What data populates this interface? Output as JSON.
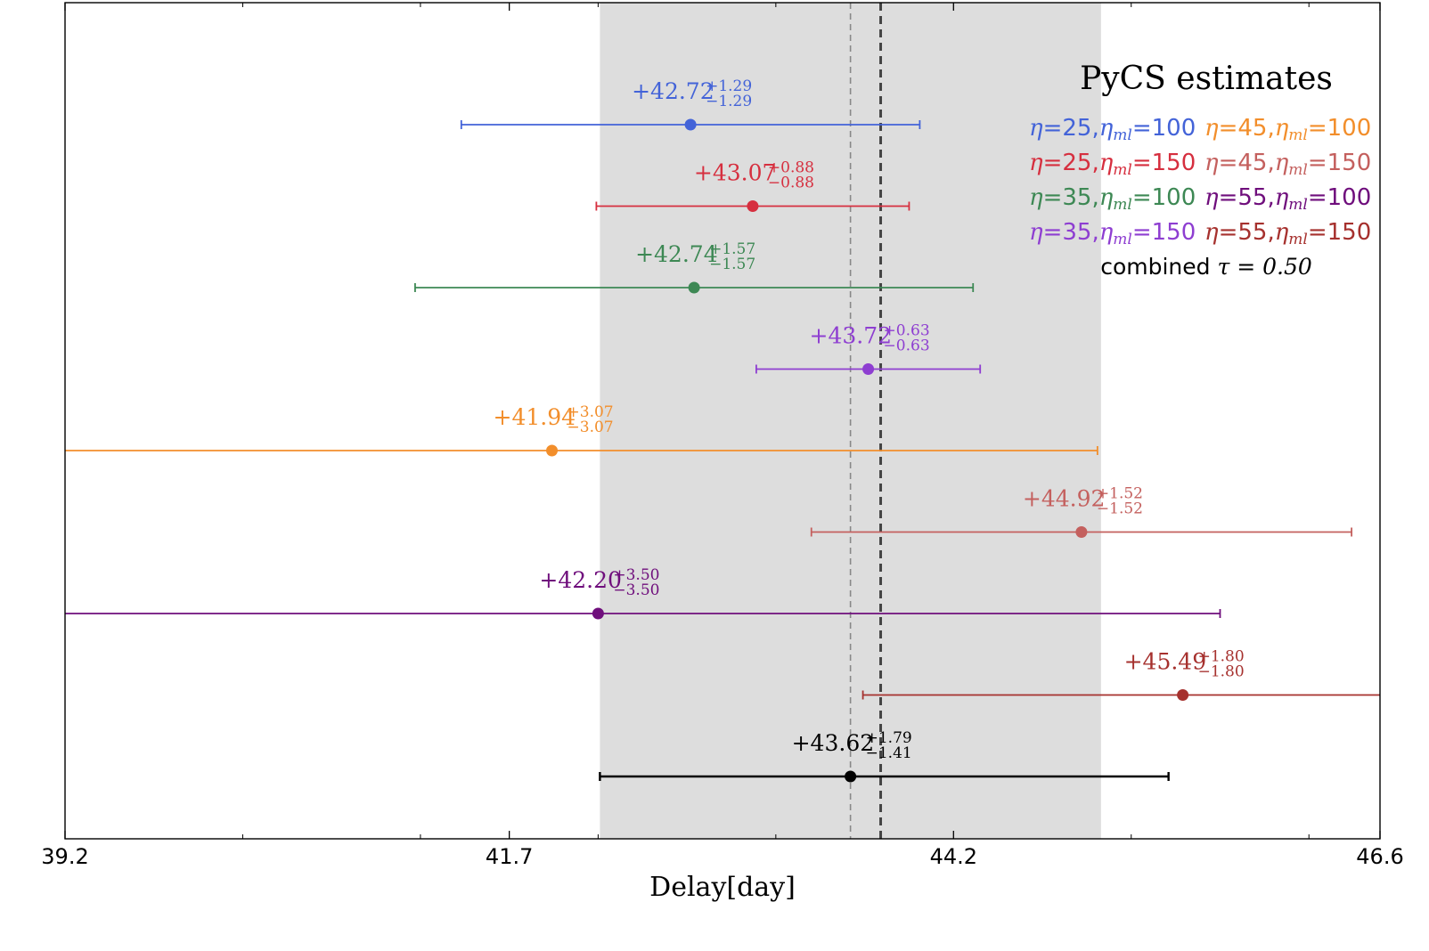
{
  "chart_data": {
    "type": "scatter",
    "title": "PyCS estimates",
    "xlabel": "Delay[day]",
    "ylabel": "",
    "xlim": [
      39.2,
      46.6
    ],
    "x_ticks": [
      39.2,
      41.7,
      44.2,
      46.6
    ],
    "x_tick_labels": [
      "39.2",
      "41.7",
      "44.2",
      "46.6"
    ],
    "grid": false,
    "legend_position": "top-right",
    "shaded_band": {
      "from": 42.21,
      "to": 45.03,
      "color": "#dddddd"
    },
    "reference_lines": [
      {
        "x": 43.62,
        "style": "thin-dashed",
        "color": "#888888"
      },
      {
        "x": 43.79,
        "style": "thick-dashed",
        "color": "#444444"
      }
    ],
    "points": [
      {
        "label": "η=25, η_ml=100",
        "value": 42.72,
        "err_plus": 1.29,
        "err_minus": 1.29,
        "value_text": "+42.72",
        "plus_text": "+1.29",
        "minus_text": "−1.29",
        "color": "#4363d8"
      },
      {
        "label": "η=25, η_ml=150",
        "value": 43.07,
        "err_plus": 0.88,
        "err_minus": 0.88,
        "value_text": "+43.07",
        "plus_text": "+0.88",
        "minus_text": "−0.88",
        "color": "#d62f3f"
      },
      {
        "label": "η=35, η_ml=100",
        "value": 42.74,
        "err_plus": 1.57,
        "err_minus": 1.57,
        "value_text": "+42.74",
        "plus_text": "+1.57",
        "minus_text": "−1.57",
        "color": "#3d8854"
      },
      {
        "label": "η=35, η_ml=150",
        "value": 43.72,
        "err_plus": 0.63,
        "err_minus": 0.63,
        "value_text": "+43.72",
        "plus_text": "+0.63",
        "minus_text": "−0.63",
        "color": "#8e3ed1"
      },
      {
        "label": "η=45, η_ml=100",
        "value": 41.94,
        "err_plus": 3.07,
        "err_minus": 3.07,
        "value_text": "+41.94",
        "plus_text": "+3.07",
        "minus_text": "−3.07",
        "color": "#f28e2b"
      },
      {
        "label": "η=45, η_ml=150",
        "value": 44.92,
        "err_plus": 1.52,
        "err_minus": 1.52,
        "value_text": "+44.92",
        "plus_text": "+1.52",
        "minus_text": "−1.52",
        "color": "#c4605e"
      },
      {
        "label": "η=55, η_ml=100",
        "value": 42.2,
        "err_plus": 3.5,
        "err_minus": 3.5,
        "value_text": "+42.20",
        "plus_text": "+3.50",
        "minus_text": "−3.50",
        "color": "#6f0e7c"
      },
      {
        "label": "η=55, η_ml=150",
        "value": 45.49,
        "err_plus": 1.8,
        "err_minus": 1.8,
        "value_text": "+45.49",
        "plus_text": "+1.80",
        "minus_text": "−1.80",
        "color": "#a6312e"
      },
      {
        "label": "combined τ=0.50",
        "value": 43.62,
        "err_plus": 1.79,
        "err_minus": 1.41,
        "value_text": "+43.62",
        "plus_text": "+1.79",
        "minus_text": "−1.41",
        "color": "#000000"
      }
    ],
    "legend": {
      "title": "PyCS estimates",
      "rows": [
        [
          {
            "eta": "25",
            "etaml": "100",
            "color": "#4363d8"
          },
          {
            "eta": "45",
            "etaml": "100",
            "color": "#f28e2b"
          }
        ],
        [
          {
            "eta": "25",
            "etaml": "150",
            "color": "#d62f3f"
          },
          {
            "eta": "45",
            "etaml": "150",
            "color": "#c4605e"
          }
        ],
        [
          {
            "eta": "35",
            "etaml": "100",
            "color": "#3d8854"
          },
          {
            "eta": "55",
            "etaml": "100",
            "color": "#6f0e7c"
          }
        ],
        [
          {
            "eta": "35",
            "etaml": "150",
            "color": "#8e3ed1"
          },
          {
            "eta": "55",
            "etaml": "150",
            "color": "#a6312e"
          }
        ]
      ],
      "eta_symbol": "η",
      "eta_sub": "ml",
      "equals": "=",
      "sep": ",",
      "combined_word": "combined",
      "tau_text": "τ = 0.50"
    }
  }
}
